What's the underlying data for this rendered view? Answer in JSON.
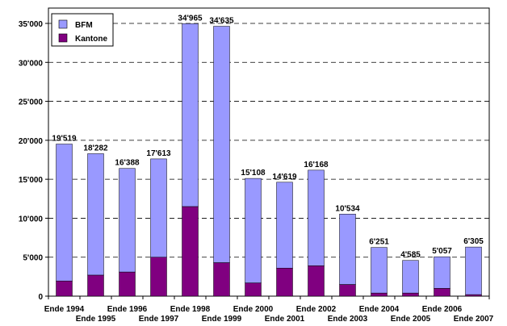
{
  "chart_data": {
    "type": "bar",
    "stacked": true,
    "categories": [
      "Ende 1994",
      "Ende 1995",
      "Ende 1996",
      "Ende 1997",
      "Ende 1998",
      "Ende 1999",
      "Ende 2000",
      "Ende 2001",
      "Ende 2002",
      "Ende 2003",
      "Ende 2004",
      "Ende 2005",
      "Ende 2006",
      "Ende 2007"
    ],
    "series": [
      {
        "name": "BFM",
        "color": "#9999ff",
        "values": [
          17569,
          15582,
          13288,
          12613,
          23465,
          30335,
          13408,
          11019,
          12268,
          9034,
          5851,
          4185,
          4057,
          6105
        ]
      },
      {
        "name": "Kantone",
        "color": "#800080",
        "values": [
          1950,
          2700,
          3100,
          5000,
          11500,
          4300,
          1700,
          3600,
          3900,
          1500,
          400,
          400,
          1000,
          200
        ]
      }
    ],
    "totals": [
      19519,
      18282,
      16388,
      17613,
      34965,
      34635,
      15108,
      14619,
      16168,
      10534,
      6251,
      4585,
      5057,
      6305
    ],
    "total_labels": [
      "19'519",
      "18'282",
      "16'388",
      "17'613",
      "34'965",
      "34'635",
      "15'108",
      "14'619",
      "16'168",
      "10'534",
      "6'251",
      "4'585",
      "5'057",
      "6'305"
    ],
    "y_ticks": [
      0,
      5000,
      10000,
      15000,
      20000,
      25000,
      30000,
      35000
    ],
    "y_tick_labels": [
      "0",
      "5'000",
      "10'000",
      "15'000",
      "20'000",
      "25'000",
      "30'000",
      "35'000"
    ],
    "ylim": [
      0,
      35000
    ],
    "grid": "horizontal dashed",
    "legend_position": "top-left",
    "title": "",
    "xlabel": "",
    "ylabel": ""
  }
}
